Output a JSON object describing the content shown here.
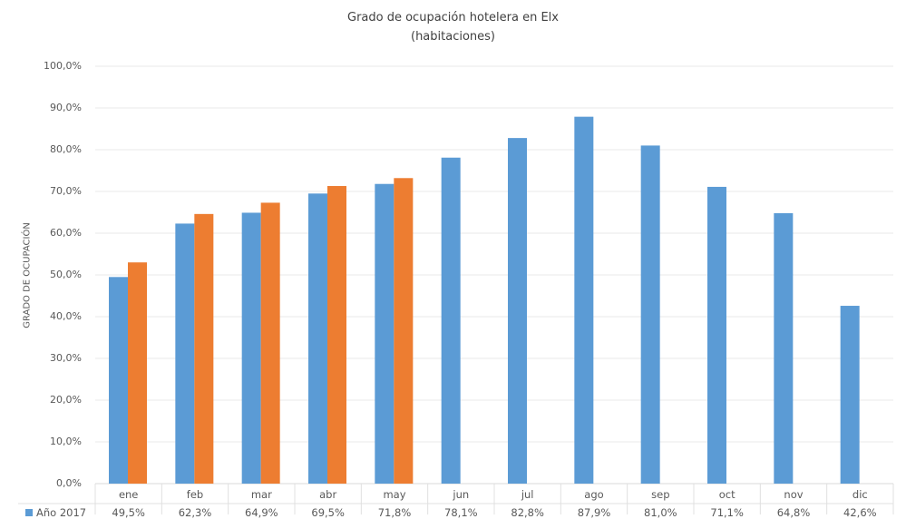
{
  "chart_data": {
    "type": "bar",
    "title": "Grado de ocupación hotelera en Elx",
    "subtitle": "(habitaciones)",
    "ylabel": "GRADO DE OCUPACIÓN",
    "ylim": [
      0,
      100
    ],
    "yticks": [
      "0,0%",
      "10,0%",
      "20,0%",
      "30,0%",
      "40,0%",
      "50,0%",
      "60,0%",
      "70,0%",
      "80,0%",
      "90,0%",
      "100,0%"
    ],
    "grid": true,
    "categories": [
      "ene",
      "feb",
      "mar",
      "abr",
      "may",
      "jun",
      "jul",
      "ago",
      "sep",
      "oct",
      "nov",
      "dic"
    ],
    "series": [
      {
        "name": "Año 2017",
        "color": "#5b9bd5",
        "values": [
          49.5,
          62.3,
          64.9,
          69.5,
          71.8,
          78.1,
          82.8,
          87.9,
          81.0,
          71.1,
          64.8,
          42.6
        ],
        "labels": [
          "49,5%",
          "62,3%",
          "64,9%",
          "69,5%",
          "71,8%",
          "78,1%",
          "82,8%",
          "87,9%",
          "81,0%",
          "71,1%",
          "64,8%",
          "42,6%"
        ]
      },
      {
        "color": "#ed7d31",
        "values": [
          53.0,
          64.6,
          67.3,
          71.3,
          73.2,
          null,
          null,
          null,
          null,
          null,
          null,
          null
        ]
      }
    ],
    "data_table": true
  }
}
